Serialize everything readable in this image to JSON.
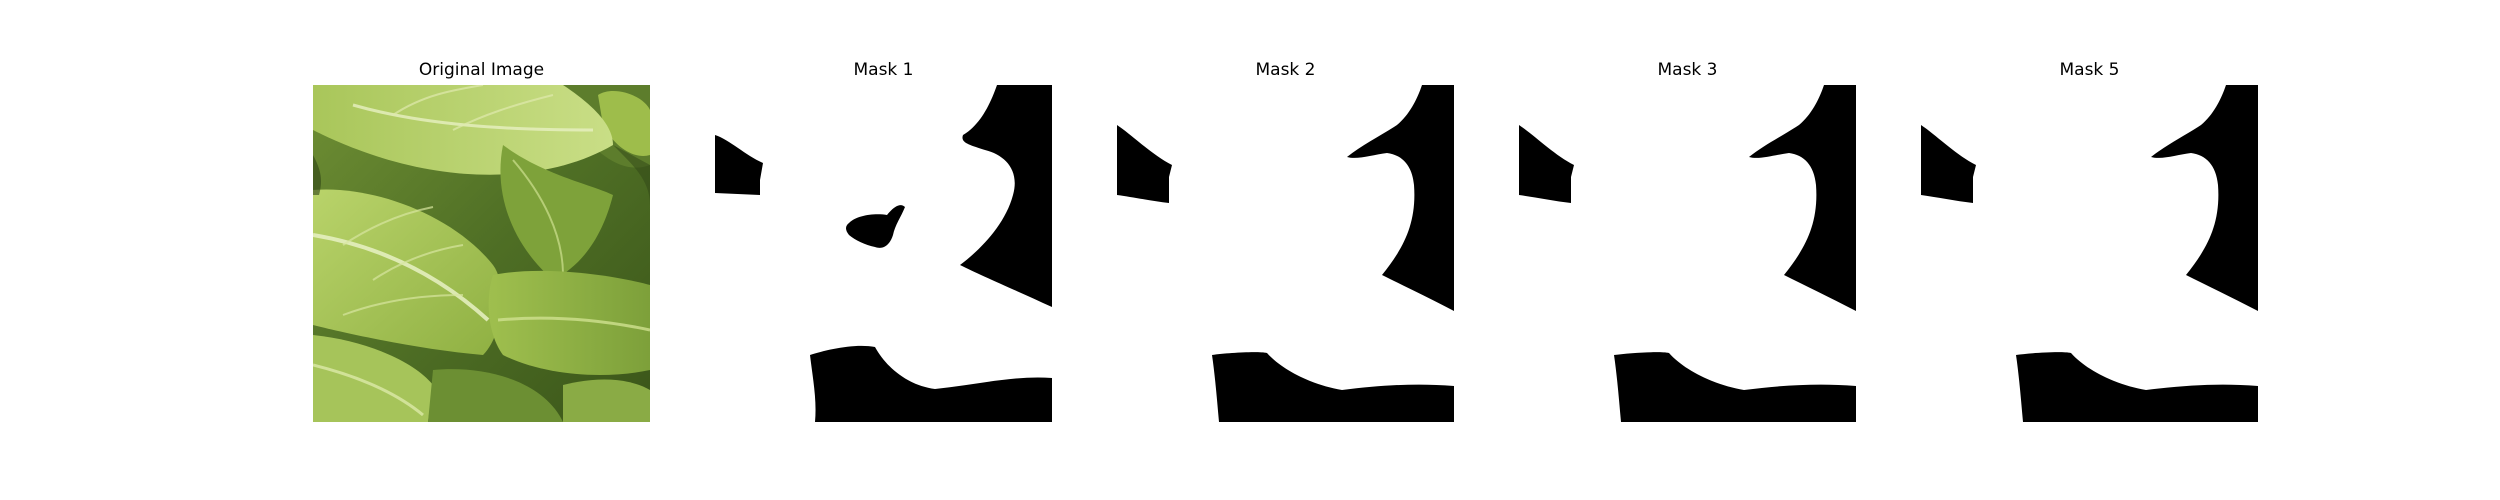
{
  "panels": [
    {
      "title": "Original Image",
      "kind": "photo"
    },
    {
      "title": "Mask 1",
      "kind": "mask"
    },
    {
      "title": "Mask 2",
      "kind": "mask"
    },
    {
      "title": "Mask 3",
      "kind": "mask"
    },
    {
      "title": "Mask 5",
      "kind": "mask"
    }
  ],
  "colors": {
    "background": "#ffffff",
    "mask_foreground": "#ffffff",
    "mask_background": "#000000",
    "leaf_light": "#c6dc7a",
    "leaf_mid": "#9fbf4e",
    "leaf_dark": "#4f6f25",
    "leaf_shadow": "#2f4516"
  }
}
